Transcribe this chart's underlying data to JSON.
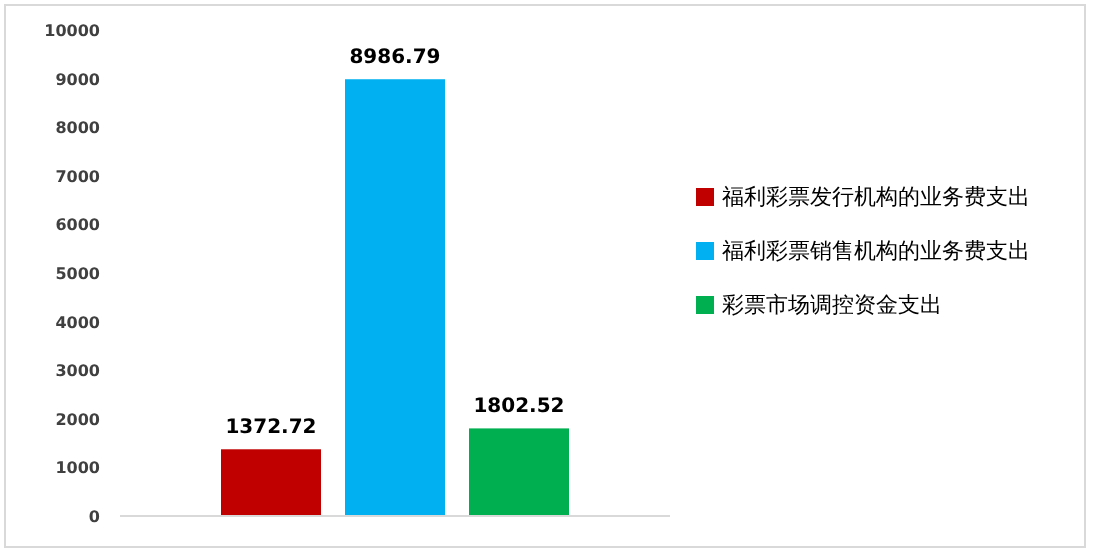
{
  "chart_data": {
    "type": "bar",
    "categories": [
      null
    ],
    "series": [
      {
        "name": "福利彩票发行机构的业务费支出",
        "color": "#c00000",
        "values": [
          1372.72
        ]
      },
      {
        "name": "福利彩票销售机构的业务费支出",
        "color": "#00b0f0",
        "values": [
          8986.79
        ]
      },
      {
        "name": "彩票市场调控资金支出",
        "color": "#00b050",
        "values": [
          1802.52
        ]
      }
    ],
    "ylim": [
      0,
      10000
    ],
    "yticks": [
      0,
      1000,
      2000,
      3000,
      4000,
      5000,
      6000,
      7000,
      8000,
      9000,
      10000
    ],
    "data_labels": true,
    "legend": "right",
    "tick_labels": "y"
  }
}
